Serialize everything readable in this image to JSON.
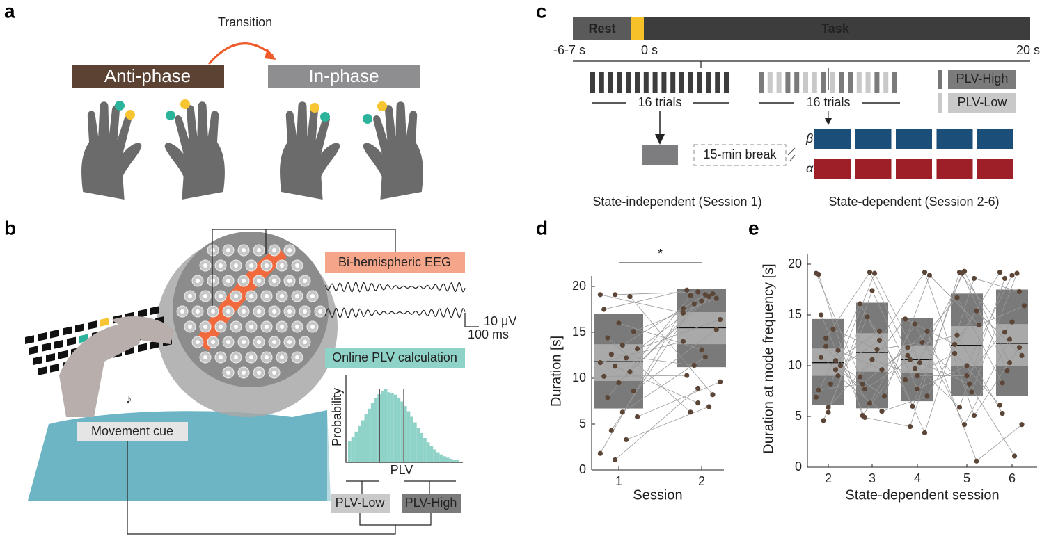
{
  "panel_labels": [
    "a",
    "b",
    "c",
    "d",
    "e"
  ],
  "panel_a": {
    "transition": "Transition",
    "anti_phase": "Anti-phase",
    "in_phase": "In-phase"
  },
  "panel_b": {
    "eeg": "Bi-hemispheric EEG",
    "scale_v": "10 μV",
    "scale_t": "100 ms",
    "plv_calc": "Online PLV calculation",
    "probability": "Probability",
    "plv": "PLV",
    "plv_low": "PLV-Low",
    "plv_high": "PLV-High",
    "movement_cue": "Movement cue"
  },
  "panel_c": {
    "rest": "Rest",
    "task": "Task",
    "t_start": "-6-7 s",
    "t_zero": "0 s",
    "t_end": "20 s",
    "trials_1": "16 trials",
    "trials_2": "16 trials",
    "legend_high": "PLV-High",
    "legend_low": "PLV-Low",
    "break": "15-min break",
    "beta": "β",
    "alpha": "α",
    "session_1": "State-independent (Session 1)",
    "session_2": "State-dependent (Session 2-6)"
  },
  "chart_data": [
    {
      "type": "box-paired",
      "xlabel": "Session",
      "ylabel": "Duration [s]",
      "annotation": "*",
      "categories": [
        "1",
        "2"
      ],
      "ylim": [
        0,
        20
      ],
      "yticks": [
        0,
        5,
        10,
        15,
        20
      ],
      "boxes": [
        {
          "low": 6.7,
          "ci_low": 9.7,
          "median": 11.8,
          "ci_high": 13.7,
          "high": 17.0
        },
        {
          "low": 11.2,
          "ci_low": 13.7,
          "median": 15.5,
          "ci_high": 17.2,
          "high": 19.7
        }
      ],
      "points": [
        [
          19.1,
          19.1,
          18.9,
          17.5,
          16.0,
          15.1,
          14.4,
          13.6,
          13.2,
          12.6,
          12.2,
          11.7,
          11.3,
          10.7,
          10.2,
          9.5,
          8.6,
          7.9,
          6.3,
          5.8,
          4.3,
          3.3,
          1.8,
          1.1
        ],
        [
          17.1,
          19.4,
          8.2,
          19.6,
          13.1,
          18.7,
          6.3,
          19.1,
          16.4,
          11.4,
          18.9,
          14.0,
          7.3,
          19.2,
          10.3,
          18.4,
          15.3,
          19.0,
          12.3,
          9.6,
          18.1,
          6.9,
          17.6,
          8.9
        ]
      ]
    },
    {
      "type": "box-paired",
      "xlabel": "State-dependent session",
      "ylabel": "Duration at mode frequency [s]",
      "categories": [
        "2",
        "3",
        "4",
        "5",
        "6"
      ],
      "ylim": [
        0,
        20
      ],
      "yticks": [
        0,
        5,
        10,
        15,
        20
      ],
      "boxes": [
        {
          "low": 6.1,
          "ci_low": 9.0,
          "median": 10.3,
          "ci_high": 11.7,
          "high": 14.6
        },
        {
          "low": 5.8,
          "ci_low": 9.4,
          "median": 11.3,
          "ci_high": 13.2,
          "high": 16.2
        },
        {
          "low": 6.5,
          "ci_low": 9.3,
          "median": 10.6,
          "ci_high": 12.0,
          "high": 14.7
        },
        {
          "low": 7.0,
          "ci_low": 10.0,
          "median": 12.0,
          "ci_high": 13.9,
          "high": 17.1
        },
        {
          "low": 7.0,
          "ci_low": 10.0,
          "median": 12.2,
          "ci_high": 14.1,
          "high": 17.5
        }
      ],
      "points": [
        [
          19.1,
          12.7,
          9.6,
          19.0,
          5.4,
          11.5,
          15.0,
          8.2,
          10.0,
          4.6,
          13.6,
          6.9,
          11.9,
          10.5,
          7.6,
          5.9,
          9.0,
          10.8
        ],
        [
          8.9,
          19.2,
          12.5,
          5.1,
          17.4,
          9.6,
          4.9,
          19.1,
          7.0,
          14.8,
          11.6,
          16.1,
          6.3,
          13.4,
          8.2,
          10.6,
          5.5,
          7.7
        ],
        [
          14.6,
          9.7,
          19.2,
          11.0,
          7.7,
          13.4,
          4.0,
          10.3,
          18.9,
          6.0,
          12.3,
          8.6,
          14.1,
          3.4,
          11.8,
          9.0,
          7.0,
          10.6
        ],
        [
          12.1,
          19.3,
          5.1,
          16.7,
          10.0,
          0.6,
          19.2,
          8.2,
          14.0,
          19.1,
          7.4,
          11.2,
          4.2,
          18.6,
          13.0,
          9.0,
          15.4,
          5.9
        ],
        [
          19.2,
          10.3,
          11.8,
          8.3,
          18.9,
          4.2,
          13.3,
          1.1,
          15.9,
          9.5,
          19.1,
          6.1,
          12.6,
          17.3,
          5.3,
          14.3,
          11.0,
          18.6
        ]
      ]
    }
  ]
}
